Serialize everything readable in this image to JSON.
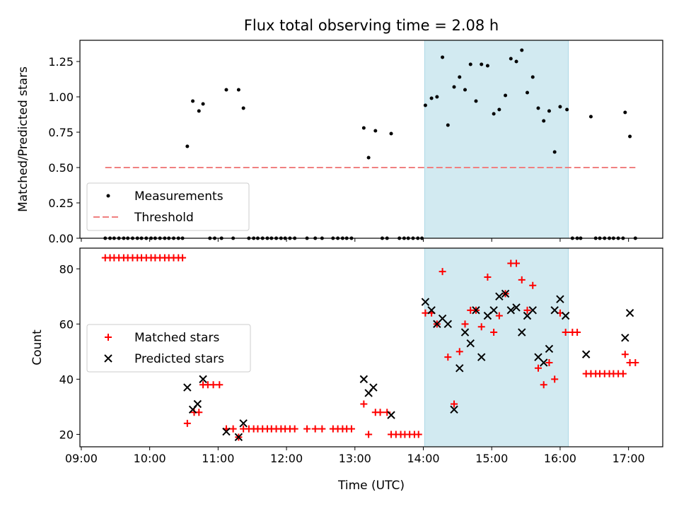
{
  "figure": {
    "title": "Flux total observing time = 2.08 h",
    "xlabel": "Time (UTC)",
    "x_ticks": [
      "09:00",
      "10:00",
      "11:00",
      "12:00",
      "13:00",
      "14:00",
      "15:00",
      "16:00",
      "17:00"
    ],
    "x_range_hours": [
      8.98,
      17.5
    ],
    "shaded_region_hours": [
      14.02,
      16.12
    ],
    "shade_color": "#add8e6"
  },
  "chart_data": [
    {
      "type": "scatter",
      "ylabel": "Matched/Predicted stars",
      "ylim": [
        0,
        1.4
      ],
      "y_ticks": [
        "0.00",
        "0.25",
        "0.50",
        "0.75",
        "1.00",
        "1.25"
      ],
      "legend": {
        "placement": "lower-left",
        "entries": [
          "Measurements",
          "Threshold"
        ]
      },
      "series": [
        {
          "name": "Measurements",
          "color": "#000000",
          "marker": "dot",
          "x": [
            9.35,
            9.42,
            9.48,
            9.55,
            9.62,
            9.68,
            9.75,
            9.82,
            9.88,
            9.95,
            10.02,
            10.08,
            10.15,
            10.22,
            10.28,
            10.35,
            10.42,
            10.48,
            10.55,
            10.63,
            10.72,
            10.78,
            10.88,
            10.95,
            11.05,
            11.12,
            11.22,
            11.3,
            11.37,
            11.45,
            11.52,
            11.58,
            11.65,
            11.72,
            11.78,
            11.85,
            11.92,
            11.98,
            12.05,
            12.12,
            12.3,
            12.42,
            12.52,
            12.68,
            12.75,
            12.82,
            12.88,
            12.95,
            13.13,
            13.2,
            13.3,
            13.4,
            13.47,
            13.53,
            13.65,
            13.72,
            13.78,
            13.85,
            13.92,
            13.98,
            14.03,
            14.12,
            14.2,
            14.28,
            14.36,
            14.45,
            14.53,
            14.61,
            14.69,
            14.77,
            14.85,
            14.94,
            15.03,
            15.11,
            15.2,
            15.28,
            15.36,
            15.44,
            15.52,
            15.6,
            15.68,
            15.76,
            15.84,
            15.92,
            16.0,
            16.1,
            16.18,
            16.25,
            16.3,
            16.45,
            16.52,
            16.58,
            16.65,
            16.72,
            16.78,
            16.85,
            16.92,
            16.95,
            17.02,
            17.1
          ],
          "y": [
            0,
            0,
            0,
            0,
            0,
            0,
            0,
            0,
            0,
            0,
            0,
            0,
            0,
            0,
            0,
            0,
            0,
            0,
            0.65,
            0.97,
            0.9,
            0.95,
            0,
            0,
            0,
            1.05,
            0,
            1.05,
            0.92,
            0,
            0,
            0,
            0,
            0,
            0,
            0,
            0,
            0,
            0,
            0,
            0,
            0,
            0,
            0,
            0,
            0,
            0,
            0,
            0.78,
            0.57,
            0.76,
            0,
            0,
            0.74,
            0,
            0,
            0,
            0,
            0,
            0,
            0.94,
            0.99,
            1.0,
            1.28,
            0.8,
            1.07,
            1.14,
            1.05,
            1.23,
            0.97,
            1.23,
            1.22,
            0.88,
            0.91,
            1.01,
            1.27,
            1.25,
            1.33,
            1.03,
            1.14,
            0.92,
            0.83,
            0.9,
            0.61,
            0.93,
            0.91,
            0,
            0,
            0,
            0.86,
            0,
            0,
            0,
            0,
            0,
            0,
            0,
            0.89,
            0.72,
            0
          ]
        },
        {
          "name": "Threshold",
          "color": "#f08080",
          "style": "dashed",
          "x": [
            9.35,
            17.1
          ],
          "y": [
            0.5,
            0.5
          ]
        }
      ]
    },
    {
      "type": "scatter",
      "ylabel": "Count",
      "ylim": [
        15.5,
        87.5
      ],
      "y_ticks": [
        "20",
        "40",
        "60",
        "80"
      ],
      "legend": {
        "placement": "center-left",
        "entries": [
          "Matched stars",
          "Predicted stars"
        ]
      },
      "series": [
        {
          "name": "Matched stars",
          "color": "#ff0000",
          "marker": "plus",
          "x": [
            9.35,
            9.42,
            9.48,
            9.55,
            9.62,
            9.68,
            9.75,
            9.82,
            9.88,
            9.95,
            10.02,
            10.08,
            10.15,
            10.22,
            10.28,
            10.35,
            10.42,
            10.48,
            10.55,
            10.65,
            10.72,
            10.78,
            10.85,
            10.93,
            11.02,
            11.12,
            11.22,
            11.3,
            11.37,
            11.45,
            11.52,
            11.58,
            11.65,
            11.72,
            11.78,
            11.85,
            11.92,
            11.98,
            12.05,
            12.12,
            12.3,
            12.42,
            12.52,
            12.68,
            12.75,
            12.82,
            12.88,
            12.95,
            13.13,
            13.2,
            13.3,
            13.37,
            13.47,
            13.53,
            13.6,
            13.67,
            13.73,
            13.8,
            13.87,
            13.93,
            14.03,
            14.12,
            14.2,
            14.28,
            14.36,
            14.45,
            14.53,
            14.61,
            14.69,
            14.77,
            14.85,
            14.94,
            15.03,
            15.11,
            15.2,
            15.28,
            15.36,
            15.44,
            15.52,
            15.6,
            15.68,
            15.76,
            15.84,
            15.92,
            16.0,
            16.08,
            16.18,
            16.25,
            16.38,
            16.45,
            16.52,
            16.58,
            16.65,
            16.72,
            16.78,
            16.85,
            16.92,
            16.95,
            17.02,
            17.1
          ],
          "y": [
            84,
            84,
            84,
            84,
            84,
            84,
            84,
            84,
            84,
            84,
            84,
            84,
            84,
            84,
            84,
            84,
            84,
            84,
            24,
            28,
            28,
            38,
            38,
            38,
            38,
            22,
            22,
            19,
            22,
            22,
            22,
            22,
            22,
            22,
            22,
            22,
            22,
            22,
            22,
            22,
            22,
            22,
            22,
            22,
            22,
            22,
            22,
            22,
            31,
            20,
            28,
            28,
            28,
            20,
            20,
            20,
            20,
            20,
            20,
            20,
            64,
            64,
            60,
            79,
            48,
            31,
            50,
            60,
            65,
            65,
            59,
            77,
            57,
            63,
            71,
            82,
            82,
            76,
            65,
            74,
            44,
            38,
            46,
            40,
            64,
            57,
            57,
            57,
            42,
            42,
            42,
            42,
            42,
            42,
            42,
            42,
            42,
            49,
            46,
            46
          ]
        },
        {
          "name": "Predicted stars",
          "color": "#000000",
          "marker": "x",
          "x": [
            10.55,
            10.63,
            10.7,
            10.78,
            11.12,
            11.3,
            11.37,
            13.13,
            13.2,
            13.27,
            13.53,
            14.03,
            14.12,
            14.2,
            14.28,
            14.36,
            14.45,
            14.53,
            14.61,
            14.69,
            14.77,
            14.85,
            14.94,
            15.03,
            15.11,
            15.2,
            15.28,
            15.36,
            15.44,
            15.52,
            15.6,
            15.68,
            15.76,
            15.84,
            15.92,
            16.0,
            16.08,
            16.38,
            16.95,
            17.02
          ],
          "y": [
            37,
            29,
            31,
            40,
            21,
            19,
            24,
            40,
            35,
            37,
            27,
            68,
            65,
            60,
            62,
            60,
            29,
            44,
            57,
            53,
            65,
            48,
            63,
            65,
            70,
            71,
            65,
            66,
            57,
            63,
            65,
            48,
            46,
            51,
            65,
            69,
            63,
            49,
            55,
            64
          ]
        }
      ]
    }
  ]
}
